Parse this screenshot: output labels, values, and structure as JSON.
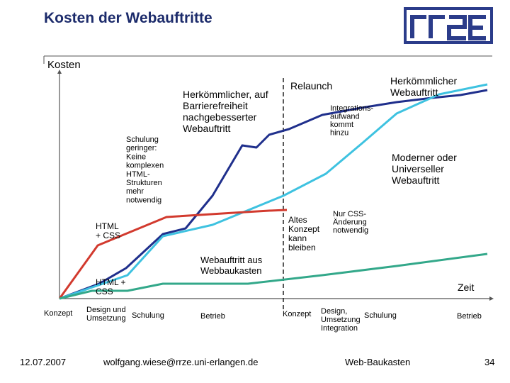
{
  "slide": {
    "title": "Kosten der Webauftritte",
    "footer": {
      "date": "12.07.2007",
      "email": "wolfgang.wiese@rrze.uni-erlangen.de",
      "product": "Web-Baukasten",
      "page": "34"
    }
  },
  "colors": {
    "title": "#1c2b6b",
    "logo": "#2b3c8a",
    "dark_blue": "#1f2f8c",
    "light_blue": "#3ec2e0",
    "red": "#d23a2e",
    "green": "#33a88a",
    "axis": "#555555"
  },
  "chart_data": {
    "type": "line",
    "ylabel": "Kosten",
    "xlabel": "Zeit",
    "grid": false,
    "phase_label": "Relaunch",
    "x_ticks": [
      {
        "id": "konzept-1",
        "lines": [
          "Konzept"
        ]
      },
      {
        "id": "design-1",
        "lines": [
          "Design und",
          "Umsetzung"
        ]
      },
      {
        "id": "schulung-1",
        "lines": [
          "Schulung"
        ]
      },
      {
        "id": "betrieb-1",
        "lines": [
          "Betrieb"
        ]
      },
      {
        "id": "konzept-2",
        "lines": [
          "Konzept"
        ]
      },
      {
        "id": "design-2",
        "lines": [
          "Design,",
          "Umsetzung",
          "Integration"
        ]
      },
      {
        "id": "schulung-2",
        "lines": [
          "Schulung"
        ]
      },
      {
        "id": "betrieb-2",
        "lines": [
          "Betrieb"
        ]
      }
    ],
    "series": [
      {
        "key": "herkoemmlich",
        "color": "dark_blue",
        "points": [
          [
            0,
            0
          ],
          [
            1,
            12
          ],
          [
            2,
            32
          ],
          [
            3,
            37
          ],
          [
            4,
            42
          ],
          [
            5,
            48
          ],
          [
            6,
            55
          ],
          [
            7,
            64
          ],
          [
            8,
            72
          ],
          [
            9,
            75
          ],
          [
            10,
            77
          ],
          [
            11,
            79
          ],
          [
            12,
            82
          ],
          [
            13,
            86
          ],
          [
            14,
            88
          ],
          [
            15,
            90
          ]
        ]
      },
      {
        "key": "barrierefrei",
        "color": "light_blue",
        "points": [
          [
            0,
            0
          ],
          [
            2,
            22
          ],
          [
            3,
            28
          ],
          [
            4,
            35
          ],
          [
            5,
            42
          ],
          [
            6,
            52
          ],
          [
            7,
            62
          ],
          [
            8,
            72
          ],
          [
            9,
            80
          ],
          [
            10,
            86
          ]
        ]
      },
      {
        "key": "webbaukasten",
        "color": "red",
        "points": [
          [
            0,
            0
          ],
          [
            1,
            28
          ],
          [
            2,
            32
          ],
          [
            3,
            38
          ],
          [
            4,
            40
          ],
          [
            5,
            42
          ]
        ]
      },
      {
        "key": "moderner",
        "color": "green",
        "points": [
          [
            0,
            0
          ],
          [
            1,
            8
          ],
          [
            2,
            9
          ],
          [
            3,
            9
          ],
          [
            4,
            10
          ],
          [
            5,
            12
          ],
          [
            6,
            14
          ],
          [
            7,
            18
          ]
        ]
      }
    ],
    "annotations": [
      {
        "id": "herkoemmlich-barrierefrei",
        "lines": [
          "Herkömmlicher, auf",
          "Barrierefreiheit",
          "nachgebesserter",
          "Webauftritt"
        ]
      },
      {
        "id": "schulung-geringer",
        "lines": [
          "Schulung",
          "geringer:",
          "Keine",
          "komplexen",
          "HTML-",
          "Strukturen",
          "mehr",
          "notwendig"
        ]
      },
      {
        "id": "html-css-upper",
        "lines": [
          "HTML",
          "+ CSS"
        ]
      },
      {
        "id": "html-css-lower",
        "lines": [
          "HTML +",
          "CSS"
        ]
      },
      {
        "id": "webauftritt-baukasten",
        "lines": [
          "Webauftritt aus",
          "Webbaukasten"
        ]
      },
      {
        "id": "herkoemmlicher-webauftritt",
        "lines": [
          "Herkömmlicher",
          "Webauftritt"
        ]
      },
      {
        "id": "integrationsaufwand",
        "lines": [
          "Integrations-",
          "aufwand",
          "kommt",
          "hinzu"
        ]
      },
      {
        "id": "moderner-universeller",
        "lines": [
          "Moderner oder",
          "Universeller",
          "Webauftritt"
        ]
      },
      {
        "id": "altes-konzept",
        "lines": [
          "Altes",
          "Konzept",
          "kann",
          "bleiben"
        ]
      },
      {
        "id": "nur-css",
        "lines": [
          "Nur CSS-",
          "Änderung",
          "notwendig"
        ]
      }
    ]
  }
}
